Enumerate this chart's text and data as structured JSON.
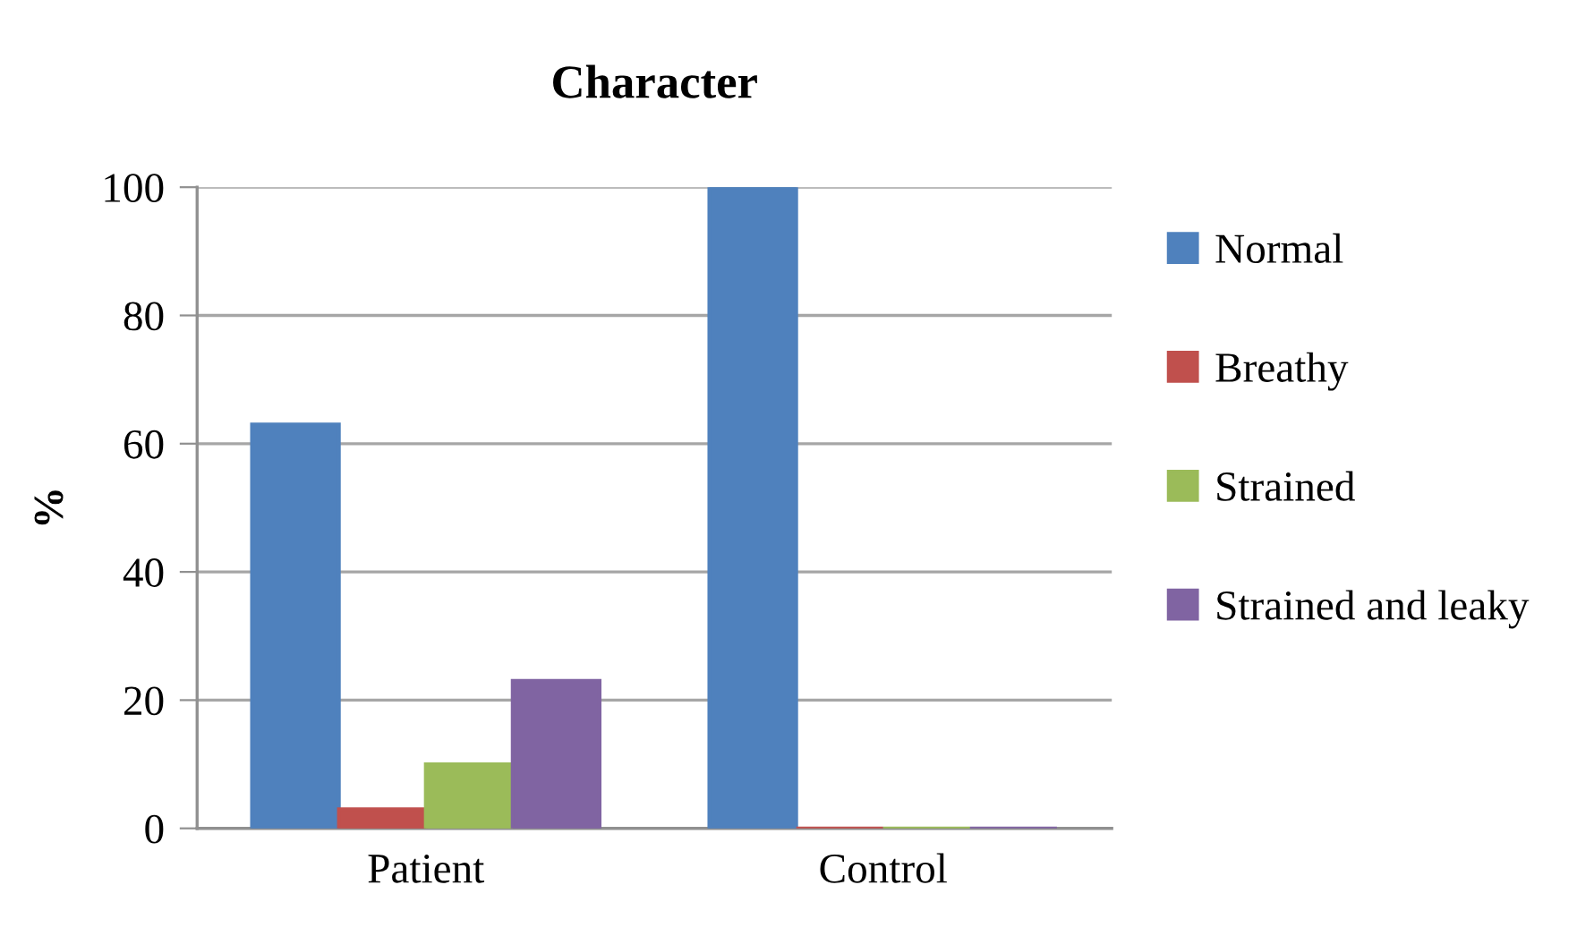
{
  "chart_data": {
    "type": "bar",
    "title": "Character",
    "ylabel": "%",
    "categories": [
      "Patient",
      "Control"
    ],
    "series": [
      {
        "name": "Normal",
        "color": "#4f81bd",
        "values": [
          63,
          100
        ]
      },
      {
        "name": "Breathy",
        "color": "#c0504d",
        "values": [
          3,
          0
        ]
      },
      {
        "name": "Strained",
        "color": "#9bbb59",
        "values": [
          10,
          0
        ]
      },
      {
        "name": "Strained and leaky",
        "color": "#8064a2",
        "values": [
          23,
          0
        ]
      }
    ],
    "ylim": [
      0,
      100
    ],
    "yticks": [
      0,
      20,
      40,
      60,
      80,
      100
    ],
    "grid": "y",
    "legend": "right"
  }
}
